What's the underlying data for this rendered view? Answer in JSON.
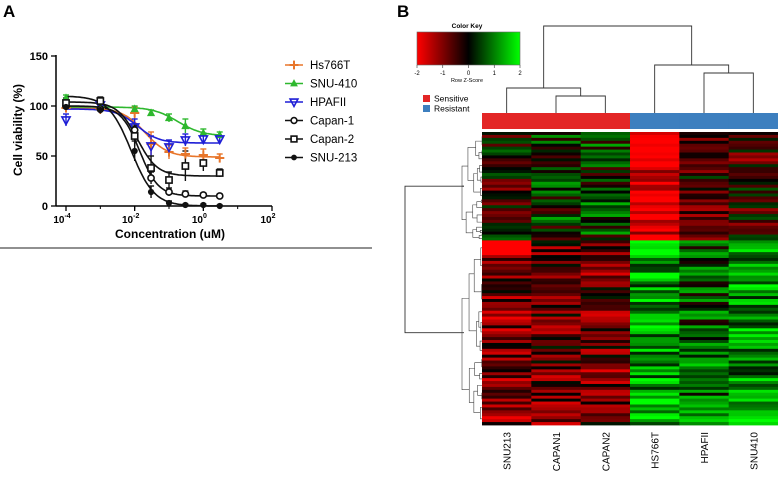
{
  "panels": {
    "a": "A",
    "b": "B"
  },
  "chart_data": [
    {
      "type": "scatter",
      "title": "",
      "xlabel": "Concentration (uM)",
      "ylabel": "Cell viability (%)",
      "xscale": "log",
      "xlim": [
        0.0001,
        100
      ],
      "ylim": [
        0,
        150
      ],
      "yticks": [
        "0",
        "50",
        "100",
        "150"
      ],
      "xticks": [
        {
          "base": "10",
          "exp": "-4"
        },
        {
          "base": "10",
          "exp": "-2"
        },
        {
          "base": "10",
          "exp": "0"
        },
        {
          "base": "10",
          "exp": "2"
        }
      ],
      "legend_position": "right",
      "series": [
        {
          "name": "Hs766T",
          "marker": "plus",
          "color": "#E8762B",
          "x": [
            0.0001,
            0.001,
            0.01,
            0.03,
            0.1,
            0.3,
            1,
            3
          ],
          "y": [
            98,
            97,
            93,
            62,
            54,
            52,
            51,
            48
          ],
          "err": [
            3,
            3,
            6,
            12,
            7,
            6,
            6,
            4
          ],
          "fit": {
            "top": 98,
            "bottom": 49,
            "ec50": 0.02,
            "hill": 1.3
          }
        },
        {
          "name": "SNU-410",
          "marker": "triangle",
          "color": "#2EB82E",
          "x": [
            0.0001,
            0.001,
            0.01,
            0.03,
            0.1,
            0.3,
            1,
            3
          ],
          "y": [
            108,
            100,
            97,
            93,
            88,
            80,
            73,
            71
          ],
          "err": [
            3,
            3,
            3,
            3,
            4,
            7,
            4,
            3
          ],
          "fit": {
            "top": 99,
            "bottom": 70,
            "ec50": 0.18,
            "hill": 1.2
          }
        },
        {
          "name": "HPAFII",
          "marker": "triangle-down",
          "color": "#1F1FD6",
          "x": [
            0.0001,
            0.001,
            0.01,
            0.03,
            0.1,
            0.3,
            1,
            3
          ],
          "y": [
            86,
            101,
            79,
            60,
            59,
            66,
            67,
            67
          ],
          "err": [
            6,
            4,
            8,
            10,
            7,
            6,
            5,
            3
          ],
          "fit": {
            "top": 97,
            "bottom": 63,
            "ec50": 0.012,
            "hill": 1.4
          }
        },
        {
          "name": "Capan-1",
          "marker": "circle-open",
          "color": "#111111",
          "x": [
            0.0001,
            0.001,
            0.01,
            0.03,
            0.1,
            0.3,
            1,
            3
          ],
          "y": [
            100,
            97,
            76,
            28,
            14,
            12,
            11,
            10
          ],
          "err": [
            5,
            4,
            6,
            6,
            4,
            3,
            2,
            2
          ],
          "fit": {
            "top": 100,
            "bottom": 10,
            "ec50": 0.014,
            "hill": 1.6
          }
        },
        {
          "name": "Capan-2",
          "marker": "square-open",
          "color": "#111111",
          "x": [
            0.0001,
            0.001,
            0.01,
            0.03,
            0.1,
            0.3,
            1,
            3
          ],
          "y": [
            103,
            105,
            70,
            38,
            26,
            40,
            43,
            33
          ],
          "err": [
            5,
            4,
            10,
            12,
            8,
            15,
            8,
            4
          ],
          "fit": {
            "top": 104,
            "bottom": 30,
            "ec50": 0.012,
            "hill": 1.5
          }
        },
        {
          "name": "SNU-213",
          "marker": "circle-filled",
          "color": "#111111",
          "x": [
            0.0001,
            0.001,
            0.01,
            0.03,
            0.1,
            0.3,
            1,
            3
          ],
          "y": [
            99,
            96,
            55,
            14,
            3,
            1,
            1,
            0
          ],
          "err": [
            4,
            4,
            10,
            6,
            2,
            1,
            1,
            1
          ],
          "fit": {
            "top": 110,
            "bottom": 0,
            "ec50": 0.008,
            "hill": 1.3
          }
        }
      ]
    },
    {
      "type": "heatmap",
      "color_key": {
        "title": "Color Key",
        "xlabel": "Row Z-Score",
        "ticks": [
          "-2",
          "-1",
          "0",
          "1",
          "2"
        ],
        "low_color": "#FF0000",
        "mid_color": "#000000",
        "high_color": "#00FF00"
      },
      "group_legend": [
        {
          "label": "Sensitive",
          "color": "#E32626"
        },
        {
          "label": "Resistant",
          "color": "#3D7FBF"
        }
      ],
      "columns": [
        {
          "label": "SNU213",
          "group": "Sensitive"
        },
        {
          "label": "CAPAN1",
          "group": "Sensitive"
        },
        {
          "label": "CAPAN2",
          "group": "Sensitive"
        },
        {
          "label": "HS766T",
          "group": "Resistant"
        },
        {
          "label": "HPAFII",
          "group": "Resistant"
        },
        {
          "label": "SNU410",
          "group": "Resistant"
        }
      ],
      "row_count": 100,
      "row_cluster_split": 37,
      "block_means": {
        "cluster1": [
          -0.2,
          0.3,
          0.4,
          -1.8,
          -0.5,
          -0.4
        ],
        "cluster2": [
          -0.9,
          -0.7,
          -0.8,
          1.2,
          0.7,
          1.1
        ]
      }
    }
  ]
}
